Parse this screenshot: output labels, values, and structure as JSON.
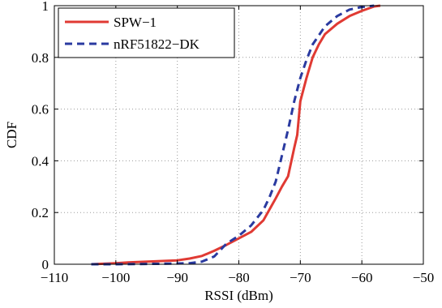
{
  "chart_data": {
    "type": "line",
    "xlabel": "RSSI (dBm)",
    "ylabel": "CDF",
    "xlim": [
      -110,
      -50
    ],
    "ylim": [
      0,
      1
    ],
    "xticks": [
      -110,
      -100,
      -90,
      -80,
      -70,
      -60,
      -50
    ],
    "yticks": [
      0,
      0.2,
      0.4,
      0.6,
      0.8,
      1
    ],
    "xtick_labels": [
      "−110",
      "−100",
      "−90",
      "−80",
      "−70",
      "−60",
      "−50"
    ],
    "ytick_labels": [
      "0",
      "0.2",
      "0.4",
      "0.6",
      "0.8",
      "1"
    ],
    "grid": true,
    "legend_position": "top-left",
    "series": [
      {
        "name": "SPW−1",
        "color": "#e03a33",
        "style": "solid",
        "x": [
          -104,
          -102,
          -100,
          -98,
          -96,
          -94,
          -92,
          -90,
          -88,
          -86,
          -84,
          -82,
          -80,
          -78,
          -76,
          -74,
          -73,
          -72,
          -71,
          -70.5,
          -70,
          -69,
          -68,
          -67,
          -66,
          -64,
          -62,
          -60,
          -58,
          -57
        ],
        "y": [
          0,
          0.002,
          0.004,
          0.007,
          0.009,
          0.011,
          0.013,
          0.015,
          0.022,
          0.032,
          0.052,
          0.075,
          0.1,
          0.125,
          0.17,
          0.255,
          0.3,
          0.34,
          0.45,
          0.5,
          0.63,
          0.72,
          0.8,
          0.85,
          0.89,
          0.93,
          0.96,
          0.98,
          0.997,
          1
        ]
      },
      {
        "name": "nRF51822−DK",
        "color": "#2a3aa0",
        "style": "dashed",
        "x": [
          -104,
          -100,
          -96,
          -92,
          -88,
          -86,
          -84,
          -82,
          -80,
          -78,
          -76,
          -75,
          -74,
          -73,
          -72,
          -71,
          -70,
          -69,
          -68,
          -66,
          -64,
          -62,
          -60,
          -58
        ],
        "y": [
          0,
          0,
          0.001,
          0.002,
          0.004,
          0.01,
          0.03,
          0.08,
          0.11,
          0.15,
          0.21,
          0.26,
          0.32,
          0.42,
          0.52,
          0.63,
          0.72,
          0.79,
          0.85,
          0.92,
          0.96,
          0.985,
          0.995,
          1
        ]
      }
    ]
  }
}
